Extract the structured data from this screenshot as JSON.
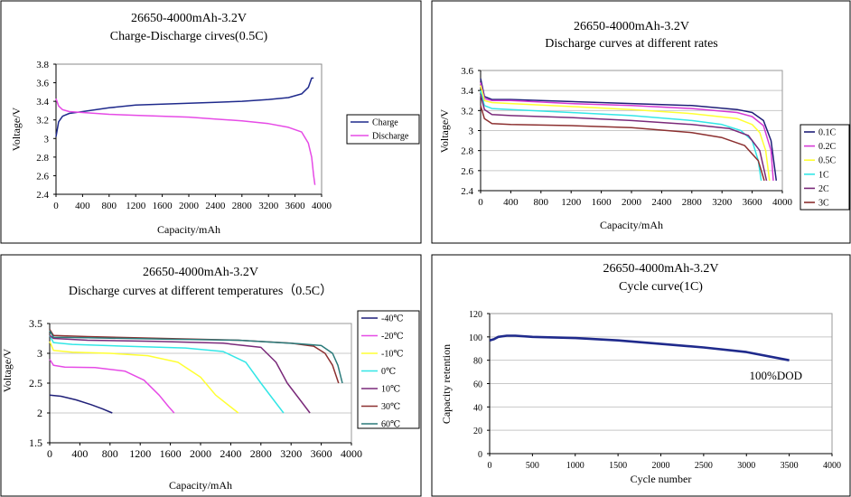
{
  "chart_data": [
    {
      "type": "line",
      "title": "26650-4000mAh-3.2V",
      "subtitle": "Charge-Discharge cirves(0.5C)",
      "xlabel": "Capacity/mAh",
      "ylabel": "Voltage/V",
      "xlim": [
        0,
        4000
      ],
      "ylim": [
        2.4,
        3.8
      ],
      "xticks": [
        0,
        400,
        800,
        1200,
        1600,
        2000,
        2400,
        2800,
        3200,
        3600,
        4000
      ],
      "yticks": [
        2.4,
        2.6,
        2.8,
        3,
        3.2,
        3.4,
        3.6,
        3.8
      ],
      "ytick_labels": [
        "2.4",
        "2.6",
        "2.8",
        "3",
        "3.2",
        "3.4",
        "3.6",
        "3.8"
      ],
      "grid": false,
      "legend": "right",
      "series": [
        {
          "name": "Charge",
          "color": "#1f2a8c",
          "points": [
            [
              0,
              3.02
            ],
            [
              40,
              3.18
            ],
            [
              100,
              3.24
            ],
            [
              200,
              3.27
            ],
            [
              400,
              3.29
            ],
            [
              800,
              3.33
            ],
            [
              1200,
              3.36
            ],
            [
              1600,
              3.37
            ],
            [
              2000,
              3.38
            ],
            [
              2400,
              3.39
            ],
            [
              2800,
              3.4
            ],
            [
              3200,
              3.42
            ],
            [
              3500,
              3.44
            ],
            [
              3700,
              3.48
            ],
            [
              3800,
              3.55
            ],
            [
              3850,
              3.65
            ],
            [
              3880,
              3.65
            ]
          ]
        },
        {
          "name": "Discharge",
          "color": "#e64be6",
          "points": [
            [
              0,
              3.43
            ],
            [
              40,
              3.35
            ],
            [
              100,
              3.31
            ],
            [
              200,
              3.29
            ],
            [
              400,
              3.28
            ],
            [
              800,
              3.26
            ],
            [
              1200,
              3.25
            ],
            [
              1600,
              3.24
            ],
            [
              2000,
              3.23
            ],
            [
              2400,
              3.21
            ],
            [
              2800,
              3.19
            ],
            [
              3200,
              3.16
            ],
            [
              3500,
              3.12
            ],
            [
              3700,
              3.07
            ],
            [
              3800,
              2.95
            ],
            [
              3850,
              2.8
            ],
            [
              3880,
              2.6
            ],
            [
              3900,
              2.5
            ]
          ]
        }
      ]
    },
    {
      "type": "line",
      "title": "26650-4000mAh-3.2V",
      "subtitle": "Discharge curves at different rates",
      "xlabel": "Capacity/mAh",
      "ylabel": "Voltage/V",
      "xlim": [
        0,
        4000
      ],
      "ylim": [
        2.4,
        3.6
      ],
      "xticks": [
        0,
        400,
        800,
        1200,
        1600,
        2000,
        2400,
        2800,
        3200,
        3600,
        4000
      ],
      "yticks": [
        2.4,
        2.6,
        2.8,
        3,
        3.2,
        3.4,
        3.6
      ],
      "ytick_labels": [
        "2.4",
        "2.6",
        "2.8",
        "3",
        "3.2",
        "3.4",
        "3.6"
      ],
      "grid": true,
      "legend": "right",
      "series": [
        {
          "name": "0.1C",
          "color": "#1f1f78",
          "points": [
            [
              0,
              3.52
            ],
            [
              50,
              3.34
            ],
            [
              150,
              3.31
            ],
            [
              400,
              3.31
            ],
            [
              1200,
              3.29
            ],
            [
              2000,
              3.27
            ],
            [
              2800,
              3.25
            ],
            [
              3400,
              3.21
            ],
            [
              3600,
              3.18
            ],
            [
              3750,
              3.1
            ],
            [
              3850,
              2.9
            ],
            [
              3920,
              2.5
            ]
          ]
        },
        {
          "name": "0.2C",
          "color": "#d63ad6",
          "points": [
            [
              0,
              3.48
            ],
            [
              50,
              3.32
            ],
            [
              150,
              3.3
            ],
            [
              400,
              3.3
            ],
            [
              1200,
              3.27
            ],
            [
              2000,
              3.25
            ],
            [
              2800,
              3.22
            ],
            [
              3400,
              3.18
            ],
            [
              3600,
              3.14
            ],
            [
              3750,
              3.05
            ],
            [
              3850,
              2.8
            ],
            [
              3880,
              2.5
            ]
          ]
        },
        {
          "name": "0.5C",
          "color": "#ffff33",
          "points": [
            [
              0,
              3.45
            ],
            [
              50,
              3.3
            ],
            [
              150,
              3.28
            ],
            [
              400,
              3.27
            ],
            [
              1200,
              3.24
            ],
            [
              2000,
              3.21
            ],
            [
              2800,
              3.17
            ],
            [
              3400,
              3.12
            ],
            [
              3600,
              3.06
            ],
            [
              3700,
              2.98
            ],
            [
              3780,
              2.8
            ],
            [
              3830,
              2.5
            ]
          ]
        },
        {
          "name": "1C",
          "color": "#33e6e6",
          "points": [
            [
              0,
              3.4
            ],
            [
              50,
              3.25
            ],
            [
              150,
              3.22
            ],
            [
              400,
              3.21
            ],
            [
              1200,
              3.18
            ],
            [
              2000,
              3.15
            ],
            [
              2800,
              3.1
            ],
            [
              3200,
              3.06
            ],
            [
              3450,
              3.0
            ],
            [
              3600,
              2.9
            ],
            [
              3680,
              2.7
            ],
            [
              3720,
              2.5
            ]
          ]
        },
        {
          "name": "2C",
          "color": "#7a2a7a",
          "points": [
            [
              0,
              3.36
            ],
            [
              50,
              3.21
            ],
            [
              150,
              3.16
            ],
            [
              400,
              3.15
            ],
            [
              1200,
              3.13
            ],
            [
              2000,
              3.1
            ],
            [
              2800,
              3.06
            ],
            [
              3300,
              3.02
            ],
            [
              3550,
              2.95
            ],
            [
              3700,
              2.8
            ],
            [
              3790,
              2.5
            ]
          ]
        },
        {
          "name": "3C",
          "color": "#8c3030",
          "points": [
            [
              0,
              3.25
            ],
            [
              50,
              3.12
            ],
            [
              150,
              3.07
            ],
            [
              400,
              3.06
            ],
            [
              1200,
              3.05
            ],
            [
              2000,
              3.03
            ],
            [
              2800,
              2.98
            ],
            [
              3200,
              2.93
            ],
            [
              3500,
              2.85
            ],
            [
              3680,
              2.7
            ],
            [
              3760,
              2.5
            ]
          ]
        }
      ]
    },
    {
      "type": "line",
      "title": "26650-4000mAh-3.2V",
      "subtitle": "Discharge curves at different temperatures（0.5C）",
      "xlabel": "Capacity/mAh",
      "ylabel": "Voltage/V",
      "xlim": [
        0,
        4000
      ],
      "ylim": [
        1.5,
        3.5
      ],
      "xticks": [
        0,
        400,
        800,
        1200,
        1600,
        2000,
        2400,
        2800,
        3200,
        3600,
        4000
      ],
      "yticks": [
        1.5,
        2,
        2.5,
        3,
        3.5
      ],
      "ytick_labels": [
        "1.5",
        "2",
        "2.5",
        "3",
        "3.5"
      ],
      "grid": true,
      "legend": "right",
      "series": [
        {
          "name": "-40℃",
          "color": "#1f1f78",
          "points": [
            [
              0,
              2.3
            ],
            [
              150,
              2.28
            ],
            [
              350,
              2.22
            ],
            [
              550,
              2.14
            ],
            [
              700,
              2.07
            ],
            [
              830,
              2.0
            ]
          ]
        },
        {
          "name": "-20℃",
          "color": "#e64be6",
          "points": [
            [
              0,
              2.9
            ],
            [
              50,
              2.8
            ],
            [
              200,
              2.77
            ],
            [
              600,
              2.76
            ],
            [
              1000,
              2.7
            ],
            [
              1250,
              2.55
            ],
            [
              1450,
              2.3
            ],
            [
              1580,
              2.1
            ],
            [
              1650,
              2.0
            ]
          ]
        },
        {
          "name": "-10℃",
          "color": "#ffff33",
          "points": [
            [
              0,
              3.2
            ],
            [
              50,
              3.05
            ],
            [
              300,
              3.02
            ],
            [
              800,
              3.0
            ],
            [
              1300,
              2.96
            ],
            [
              1700,
              2.85
            ],
            [
              2000,
              2.6
            ],
            [
              2200,
              2.3
            ],
            [
              2400,
              2.1
            ],
            [
              2500,
              2.0
            ]
          ]
        },
        {
          "name": "0℃",
          "color": "#33e6e6",
          "points": [
            [
              0,
              3.3
            ],
            [
              50,
              3.18
            ],
            [
              300,
              3.15
            ],
            [
              1000,
              3.12
            ],
            [
              1800,
              3.09
            ],
            [
              2300,
              3.03
            ],
            [
              2600,
              2.85
            ],
            [
              2800,
              2.5
            ],
            [
              2950,
              2.25
            ],
            [
              3100,
              2.0
            ]
          ]
        },
        {
          "name": "10℃",
          "color": "#7a2a7a",
          "points": [
            [
              0,
              3.3
            ],
            [
              50,
              3.25
            ],
            [
              500,
              3.22
            ],
            [
              1400,
              3.2
            ],
            [
              2300,
              3.17
            ],
            [
              2800,
              3.1
            ],
            [
              3000,
              2.85
            ],
            [
              3150,
              2.5
            ],
            [
              3300,
              2.25
            ],
            [
              3450,
              2.0
            ]
          ]
        },
        {
          "name": "30℃",
          "color": "#8c3030",
          "points": [
            [
              0,
              3.4
            ],
            [
              50,
              3.3
            ],
            [
              500,
              3.28
            ],
            [
              1500,
              3.25
            ],
            [
              2500,
              3.22
            ],
            [
              3200,
              3.17
            ],
            [
              3500,
              3.12
            ],
            [
              3650,
              3.0
            ],
            [
              3750,
              2.8
            ],
            [
              3830,
              2.5
            ]
          ]
        },
        {
          "name": "60℃",
          "color": "#2a7a7a",
          "points": [
            [
              0,
              3.38
            ],
            [
              50,
              3.27
            ],
            [
              500,
              3.26
            ],
            [
              1500,
              3.24
            ],
            [
              2500,
              3.22
            ],
            [
              3300,
              3.16
            ],
            [
              3600,
              3.13
            ],
            [
              3750,
              3.0
            ],
            [
              3820,
              2.8
            ],
            [
              3880,
              2.5
            ]
          ]
        }
      ]
    },
    {
      "type": "line",
      "title": "26650-4000mAh-3.2V",
      "subtitle": "Cycle curve(1C)",
      "xlabel": "Cycle number",
      "ylabel": "Capacity retention",
      "xlim": [
        0,
        4000
      ],
      "ylim": [
        0,
        120
      ],
      "xticks": [
        0,
        500,
        1000,
        1500,
        2000,
        2500,
        3000,
        3500,
        4000
      ],
      "yticks": [
        0,
        20,
        40,
        60,
        80,
        100,
        120
      ],
      "ytick_labels": [
        "0",
        "20",
        "40",
        "60",
        "80",
        "100",
        "120"
      ],
      "grid": true,
      "annotation": "100%DOD",
      "series": [
        {
          "name": "Capacity retention",
          "color": "#1f2a8c",
          "points": [
            [
              0,
              97
            ],
            [
              50,
              98
            ],
            [
              100,
              100
            ],
            [
              200,
              101
            ],
            [
              300,
              101
            ],
            [
              500,
              100
            ],
            [
              1000,
              99
            ],
            [
              1500,
              97
            ],
            [
              2000,
              94
            ],
            [
              2500,
              91
            ],
            [
              3000,
              87
            ],
            [
              3500,
              80
            ]
          ]
        }
      ]
    }
  ]
}
